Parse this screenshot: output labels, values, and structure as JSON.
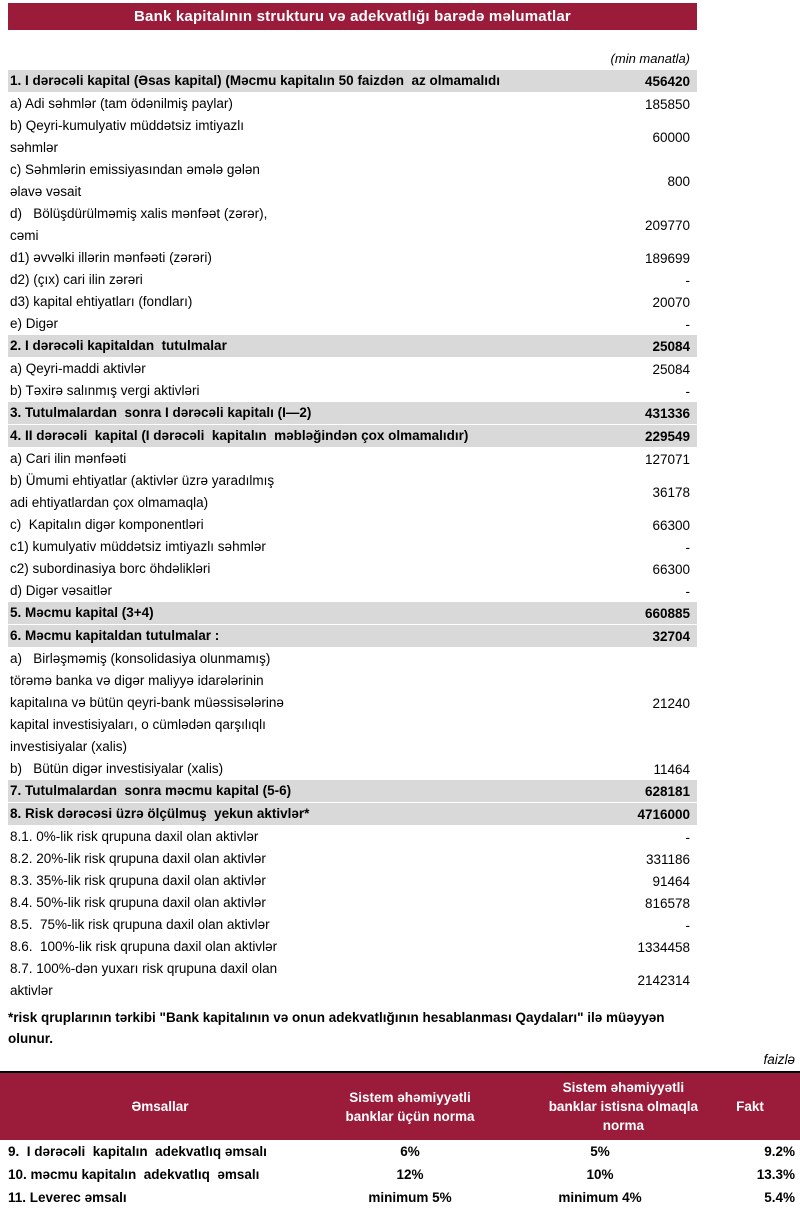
{
  "page": {
    "title": "Bank kapitalının strukturu və adekvatlığı barədə məlumatlar",
    "unit_note": "(min manatla)",
    "percent_note": "faizlə"
  },
  "colors": {
    "maroon": "#9B1B3B",
    "row_gray": "#D9D9D9",
    "header_text": "#FFFFFF"
  },
  "capital_table": {
    "rows": [
      {
        "label": "1. I dərəcəli kapital (Əsas kapital) (Məcmu kapitalın 50 faizdən  az olmamalıdı",
        "value": "456420",
        "emphasis": true
      },
      {
        "label": "a) Adi səhmlər (tam ödənilmiş paylar)",
        "value": "185850",
        "emphasis": false
      },
      {
        "label": "b) Qeyri-kumulyativ müddətsiz imtiyazlı\nsəhmlər",
        "value": "60000",
        "emphasis": false
      },
      {
        "label": "c) Səhmlərin emissiyasından əmələ gələn\nəlavə vəsait",
        "value": "800",
        "emphasis": false
      },
      {
        "label": "d)   Bölüşdürülməmiş xalis mənfəət (zərər),\ncəmi",
        "value": "209770",
        "emphasis": false
      },
      {
        "label": "d1) əvvəlki illərin mənfəəti (zərəri)",
        "value": "189699",
        "emphasis": false
      },
      {
        "label": "d2) (çıx) cari ilin zərəri",
        "value": "-",
        "emphasis": false
      },
      {
        "label": "d3) kapital ehtiyatları (fondları)",
        "value": "20070",
        "emphasis": false
      },
      {
        "label": "e) Digər",
        "value": "-",
        "emphasis": false
      },
      {
        "label": "2. I dərəcəli kapitaldan  tutulmalar",
        "value": "25084",
        "emphasis": true
      },
      {
        "label": "a) Qeyri-maddi aktivlər",
        "value": "25084",
        "emphasis": false
      },
      {
        "label": "b) Təxirə salınmış vergi aktivləri",
        "value": "-",
        "emphasis": false
      },
      {
        "label": "3. Tutulmalardan  sonra I dərəcəli kapitalı (I—2)",
        "value": "431336",
        "emphasis": true
      },
      {
        "label": "4. II dərəcəli  kapital (I dərəcəli  kapitalın  məbləğindən çox olmamalıdır)",
        "value": "229549",
        "emphasis": true
      },
      {
        "label": "a) Cari ilin mənfəəti",
        "value": "127071",
        "emphasis": false
      },
      {
        "label": "b) Ümumi ehtiyatlar (aktivlər üzrə yaradılmış\nadi ehtiyatlardan çox olmamaqla)",
        "value": "36178",
        "emphasis": false
      },
      {
        "label": "c)  Kapitalın digər komponentləri",
        "value": "66300",
        "emphasis": false
      },
      {
        "label": "c1) kumulyativ müddətsiz imtiyazlı səhmlər",
        "value": "-",
        "emphasis": false
      },
      {
        "label": "c2) subordinasiya borc öhdəlikləri",
        "value": "66300",
        "emphasis": false
      },
      {
        "label": "d) Digər vəsaitlər",
        "value": "-",
        "emphasis": false
      },
      {
        "label": "5. Məcmu kapital (3+4)",
        "value": "660885",
        "emphasis": true
      },
      {
        "label": "6. Məcmu kapitaldan tutulmalar :",
        "value": "32704",
        "emphasis": true
      },
      {
        "label": "a)   Birləşməmiş (konsolidasiya olunmamış)\ntörəmə banka və digər maliyyə idarələrinin\nkapitalına və bütün qeyri-bank müəssisələrinə\nkapital investisiyaları, o cümlədən qarşılıqlı\ninvestisiyalar (xalis)",
        "value": "21240",
        "emphasis": false
      },
      {
        "label": "b)   Bütün digər investisiyalar (xalis)",
        "value": "11464",
        "emphasis": false
      },
      {
        "label": "7. Tutulmalardan  sonra məcmu kapital (5-6)",
        "value": "628181",
        "emphasis": true
      },
      {
        "label": "8. Risk dərəcəsi üzrə ölçülmuş  yekun aktivlər*",
        "value": "4716000",
        "emphasis": true
      },
      {
        "label": "8.1. 0%-lik risk qrupuna daxil olan aktivlər",
        "value": "-",
        "emphasis": false
      },
      {
        "label": "8.2. 20%-lik risk qrupuna daxil olan aktivlər",
        "value": "331186",
        "emphasis": false
      },
      {
        "label": "8.3. 35%-lik risk qrupuna daxil olan aktivlər",
        "value": "91464",
        "emphasis": false
      },
      {
        "label": "8.4. 50%-lik risk qrupuna daxil olan aktivlər",
        "value": "816578",
        "emphasis": false
      },
      {
        "label": "8.5.  75%-lik risk qrupuna daxil olan aktivlər",
        "value": "-",
        "emphasis": false
      },
      {
        "label": "8.6.  100%-lik risk qrupuna daxil olan aktivlər",
        "value": "1334458",
        "emphasis": false
      },
      {
        "label": "8.7. 100%-dən yuxarı risk qrupuna daxil olan\naktivlər",
        "value": "2142314",
        "emphasis": false
      }
    ]
  },
  "footnote": "*risk qruplarının tərkibi \"Bank kapitalının və onun adekvatlığının hesablanması Qaydaları\" ilə müəyyən\nolunur.",
  "ratios_table": {
    "headers": [
      "Əmsallar",
      "Sistem əhəmiyyətli\nbanklar üçün norma",
      "Sistem əhəmiyyətli\nbanklar istisna olmaqla\nnorma",
      "Fakt"
    ],
    "rows": [
      {
        "label": "9.  I dərəcəli  kapitalın  adekvatlıq əmsalı",
        "norm_systemic": "6%",
        "norm_non_systemic": "5%",
        "fact": "9.2%"
      },
      {
        "label": "10. məcmu kapitalın  adekvatlıq  əmsalı",
        "norm_systemic": "12%",
        "norm_non_systemic": "10%",
        "fact": "13.3%"
      },
      {
        "label": "11. Leverec əmsalı",
        "norm_systemic": "minimum 5%",
        "norm_non_systemic": "minimum 4%",
        "fact": "5.4%"
      }
    ]
  }
}
